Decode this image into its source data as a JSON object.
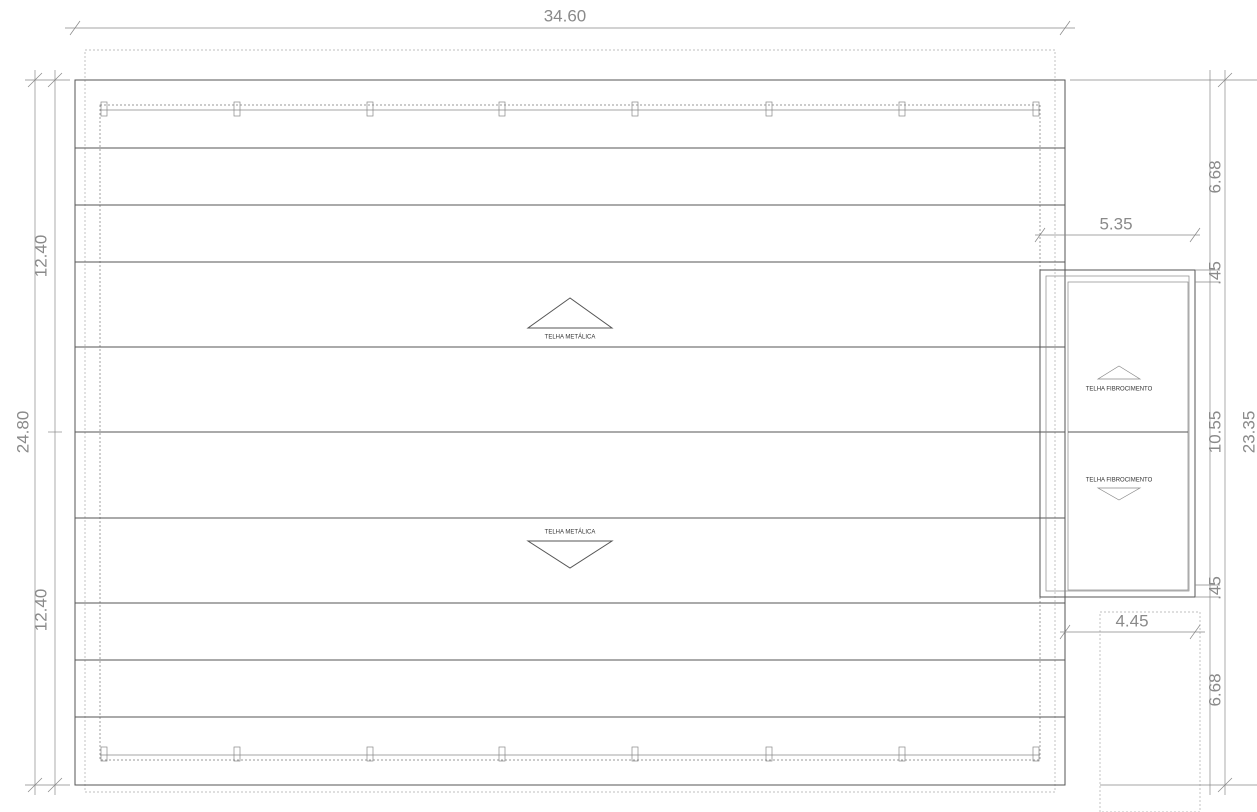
{
  "dimensions": {
    "overall_width": "34.60",
    "left_upper": "12.40",
    "left_total": "24.80",
    "left_lower": "12.40",
    "right_upper": "6.68",
    "annex_width_top": "5.35",
    "annex_upper_offset": ".45",
    "annex_height": "10.55",
    "right_total": "23.35",
    "annex_lower_offset": ".45",
    "annex_width_bottom": "4.45",
    "right_lower": "6.68"
  },
  "labels": {
    "main_upper": "TELHA METÁLICA",
    "main_lower": "TELHA METÁLICA",
    "annex_upper": "TELHA FIBROCIMENTO",
    "annex_lower": "TELHA FIBROCIMENTO"
  }
}
